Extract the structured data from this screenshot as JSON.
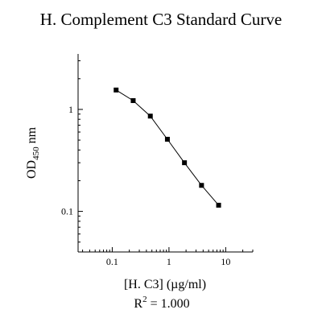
{
  "chart_data": {
    "type": "line",
    "title": "H. Complement C3 Standard Curve",
    "xlabel": "[H. C3] (µg/ml)",
    "ylabel_main": "OD",
    "ylabel_sub": "450",
    "ylabel_unit": "nm",
    "xscale": "log",
    "yscale": "log",
    "xlim": [
      0.025,
      30
    ],
    "ylim": [
      0.04,
      3.5
    ],
    "xticks": [
      {
        "value": 0.1,
        "label": "0.1"
      },
      {
        "value": 1,
        "label": "1"
      },
      {
        "value": 10,
        "label": "10"
      }
    ],
    "yticks": [
      {
        "value": 0.1,
        "label": "0.1"
      },
      {
        "value": 1,
        "label": "1"
      }
    ],
    "series": [
      {
        "x": [
          0.117,
          0.234,
          0.469,
          0.938,
          1.875,
          3.75,
          7.5
        ],
        "y": [
          1.55,
          1.22,
          0.86,
          0.51,
          0.3,
          0.18,
          0.115
        ]
      }
    ],
    "annotation": {
      "prefix": "R",
      "sup": "2",
      "suffix": " = 1.000"
    },
    "grid": false,
    "legend": "none"
  }
}
